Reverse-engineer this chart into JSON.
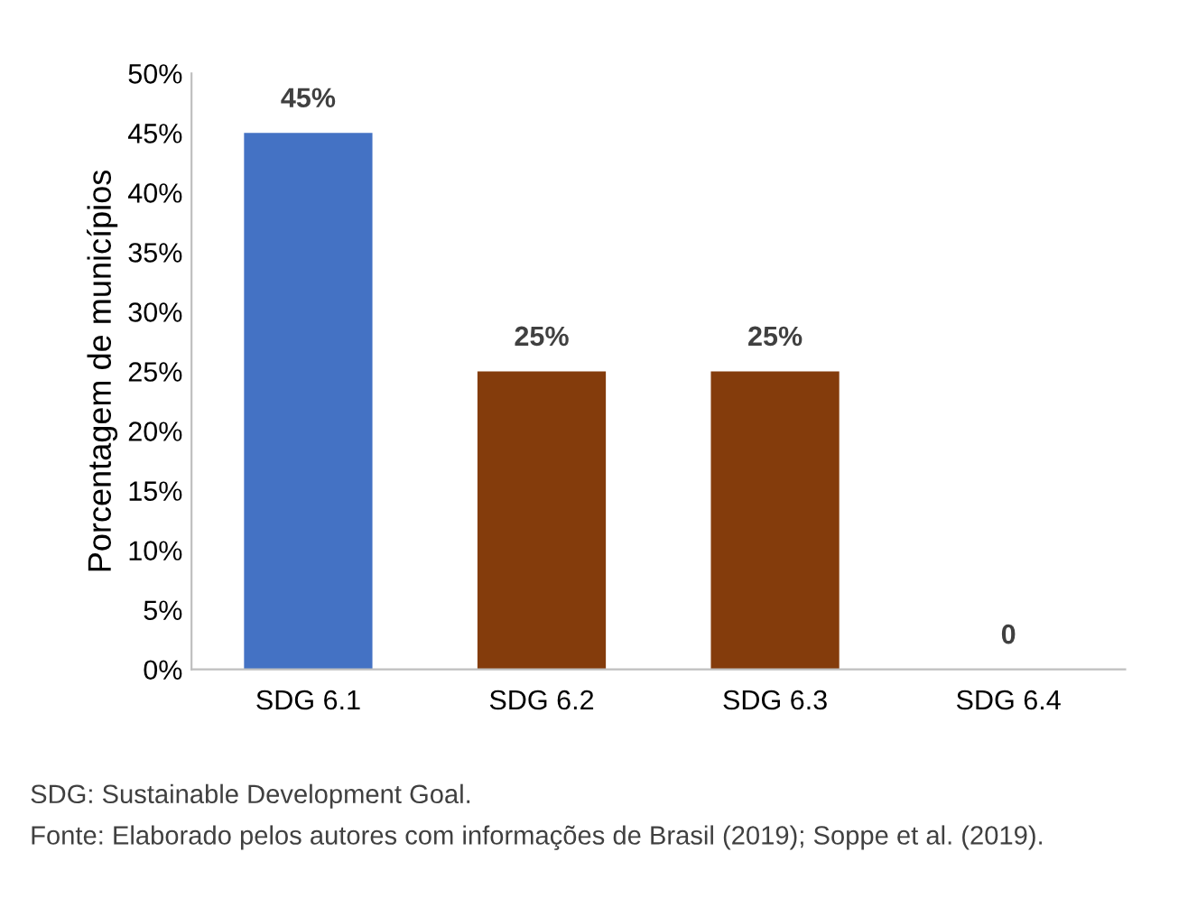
{
  "chart_data": {
    "type": "bar",
    "ylabel": "Porcentagem de municípios",
    "categories": [
      "SDG 6.1",
      "SDG 6.2",
      "SDG 6.3",
      "SDG 6.4"
    ],
    "values": [
      45,
      25,
      25,
      0
    ],
    "colors": [
      "#4472c4",
      "#843c0c",
      "#843c0c",
      "#843c0c"
    ],
    "value_labels": [
      "45%",
      "25%",
      "25%",
      "0"
    ],
    "ylim": [
      0,
      50
    ],
    "yticks": [
      {
        "value": 0,
        "label": "0%"
      },
      {
        "value": 5,
        "label": "5%"
      },
      {
        "value": 10,
        "label": "10%"
      },
      {
        "value": 15,
        "label": "15%"
      },
      {
        "value": 20,
        "label": "20%"
      },
      {
        "value": 25,
        "label": "25%"
      },
      {
        "value": 30,
        "label": "30%"
      },
      {
        "value": 35,
        "label": "35%"
      },
      {
        "value": 40,
        "label": "40%"
      },
      {
        "value": 45,
        "label": "45%"
      },
      {
        "value": 50,
        "label": "50%"
      }
    ],
    "grid": false,
    "annotations": [
      "SDG: Sustainable Development Goal.",
      "Fonte: Elaborado pelos autores com informações de Brasil (2019); Soppe et al. (2019)."
    ]
  }
}
